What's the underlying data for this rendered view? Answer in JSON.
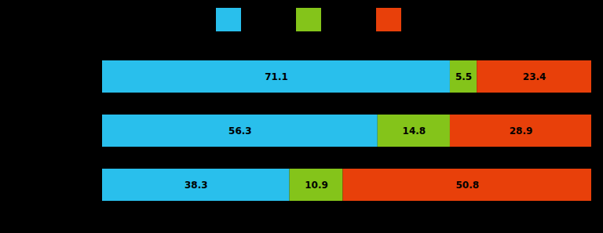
{
  "chart_data": {
    "type": "bar",
    "orientation": "horizontal",
    "stacked": true,
    "data_labels": true,
    "tick_labels": false,
    "legend": "top",
    "categories": [
      null,
      null,
      null
    ],
    "series": [
      {
        "color": "#29BFEC",
        "values": [
          71.1,
          56.3,
          38.3
        ]
      },
      {
        "color": "#84C41A",
        "values": [
          5.5,
          14.8,
          10.9
        ]
      },
      {
        "color": "#E8400A",
        "values": [
          23.4,
          28.9,
          50.8
        ]
      }
    ],
    "xlim": [
      0,
      100
    ]
  }
}
